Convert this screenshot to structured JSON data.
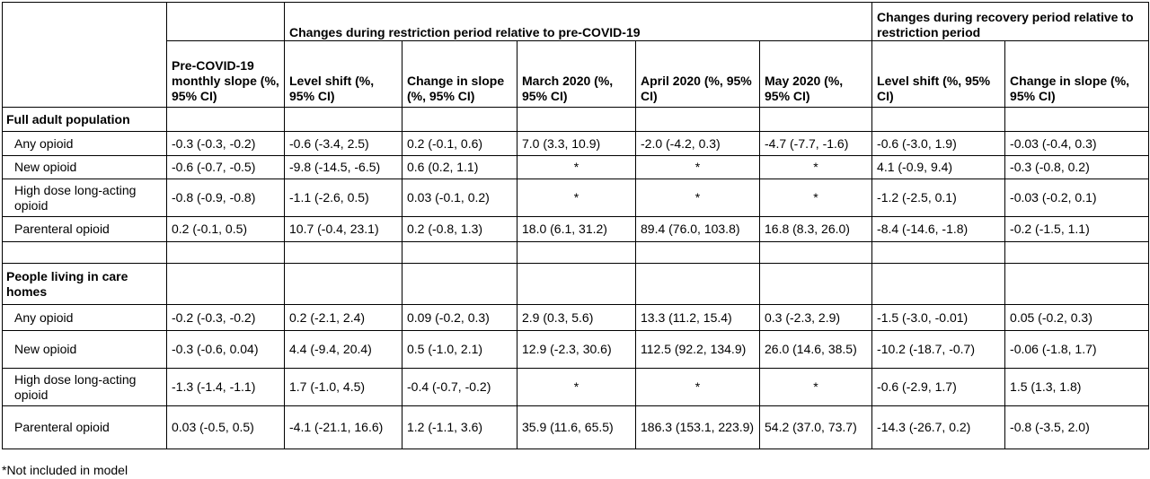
{
  "header": {
    "group_restriction": "Changes during restriction period relative to pre-COVID-19",
    "group_recovery": "Changes during recovery period relative to restriction period",
    "columns": [
      "Pre-COVID-19 monthly slope (%, 95% CI)",
      "Level shift (%, 95% CI)",
      "Change in slope (%, 95% CI)",
      "March 2020 (%, 95% CI)",
      "April 2020 (%, 95% CI)",
      "May 2020 (%, 95% CI)",
      "Level shift (%, 95% CI)",
      "Change in slope (%, 95% CI)"
    ]
  },
  "section1": {
    "title": "Full adult population",
    "rows": [
      {
        "label": "Any opioid",
        "cells": [
          "-0.3 (-0.3, -0.2)",
          "-0.6 (-3.4, 2.5)",
          "0.2 (-0.1, 0.6)",
          "7.0 (3.3, 10.9)",
          "-2.0 (-4.2, 0.3)",
          "-4.7 (-7.7, -1.6)",
          "-0.6 (-3.0, 1.9)",
          "-0.03 (-0.4, 0.3)"
        ]
      },
      {
        "label": "New opioid",
        "cells": [
          "-0.6 (-0.7, -0.5)",
          "-9.8 (-14.5, -6.5)",
          "0.6 (0.2, 1.1)",
          "*",
          "*",
          "*",
          "4.1 (-0.9, 9.4)",
          "-0.3 (-0.8, 0.2)"
        ]
      },
      {
        "label": "High dose long-acting opioid",
        "cells": [
          "-0.8 (-0.9, -0.8)",
          "-1.1 (-2.6, 0.5)",
          "0.03 (-0.1, 0.2)",
          "*",
          "*",
          "*",
          "-1.2 (-2.5, 0.1)",
          "-0.03 (-0.2, 0.1)"
        ]
      },
      {
        "label": "Parenteral opioid",
        "cells": [
          "0.2 (-0.1, 0.5)",
          "10.7 (-0.4, 23.1)",
          "0.2 (-0.8, 1.3)",
          "18.0 (6.1, 31.2)",
          "89.4 (76.0, 103.8)",
          "16.8 (8.3, 26.0)",
          "-8.4 (-14.6, -1.8)",
          "-0.2 (-1.5, 1.1)"
        ]
      }
    ]
  },
  "section2": {
    "title": "People living in care homes",
    "rows": [
      {
        "label": "Any opioid",
        "cells": [
          "-0.2 (-0.3, -0.2)",
          "0.2 (-2.1, 2.4)",
          "0.09 (-0.2, 0.3)",
          "2.9 (0.3, 5.6)",
          "13.3 (11.2, 15.4)",
          "0.3 (-2.3, 2.9)",
          "-1.5 (-3.0, -0.01)",
          "0.05 (-0.2, 0.3)"
        ]
      },
      {
        "label": "New opioid",
        "cells": [
          "-0.3 (-0.6, 0.04)",
          "4.4 (-9.4, 20.4)",
          "0.5 (-1.0, 2.1)",
          "12.9 (-2.3, 30.6)",
          "112.5 (92.2, 134.9)",
          "26.0 (14.6, 38.5)",
          "-10.2 (-18.7, -0.7)",
          "-0.06 (-1.8, 1.7)"
        ]
      },
      {
        "label": "High dose long-acting opioid",
        "cells": [
          "-1.3 (-1.4, -1.1)",
          "1.7 (-1.0, 4.5)",
          "-0.4 (-0.7, -0.2)",
          "*",
          "*",
          "*",
          "-0.6 (-2.9, 1.7)",
          "1.5 (1.3, 1.8)"
        ]
      },
      {
        "label": "Parenteral opioid",
        "cells": [
          "0.03 (-0.5, 0.5)",
          "-4.1 (-21.1, 16.6)",
          "1.2 (-1.1, 3.6)",
          "35.9 (11.6, 65.5)",
          "186.3 (153.1, 223.9)",
          "54.2 (37.0, 73.7)",
          "-14.3 (-26.7, 0.2)",
          "-0.8 (-3.5, 2.0)"
        ]
      }
    ]
  },
  "footnote": "*Not included in model"
}
